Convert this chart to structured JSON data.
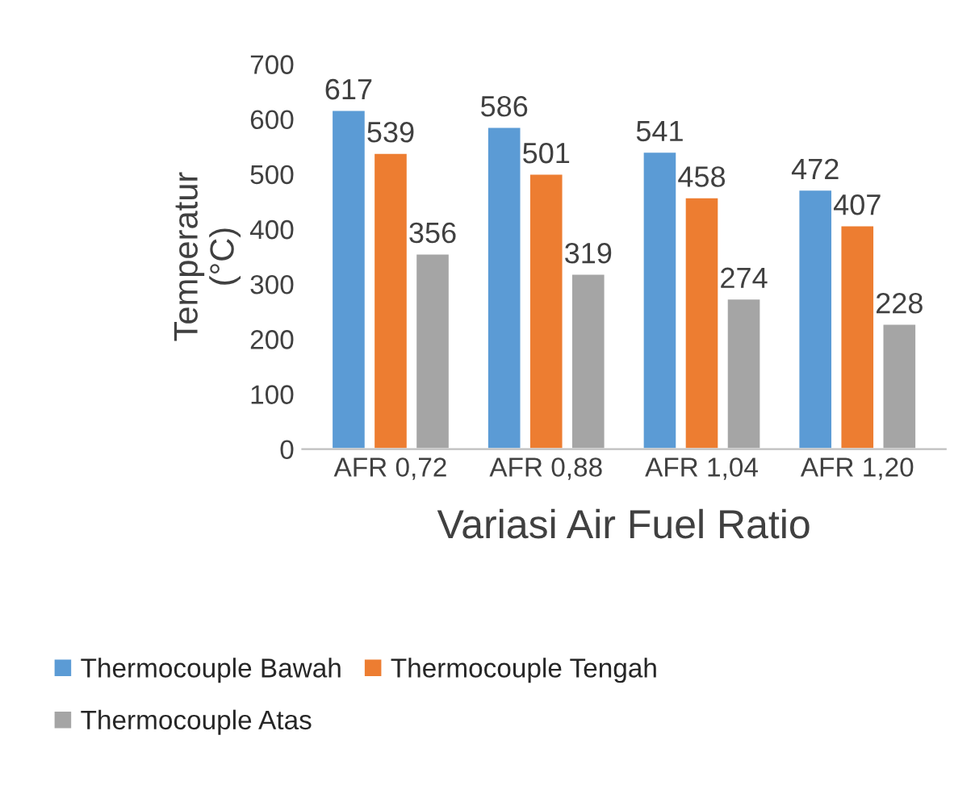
{
  "chart_data": {
    "type": "bar",
    "xlabel": "Variasi Air Fuel Ratio",
    "ylabel": "Temperatur\n(°C)",
    "categories": [
      "AFR 0,72",
      "AFR 0,88",
      "AFR 1,04",
      "AFR 1,20"
    ],
    "series": [
      {
        "name": "Thermocouple Bawah",
        "color": "#5b9bd5",
        "values": [
          617,
          586,
          541,
          472
        ]
      },
      {
        "name": "Thermocouple Tengah",
        "color": "#ed7d31",
        "values": [
          539,
          501,
          458,
          407
        ]
      },
      {
        "name": "Thermocouple Atas",
        "color": "#a5a5a5",
        "values": [
          356,
          319,
          274,
          228
        ]
      }
    ],
    "ylim": [
      0,
      700
    ],
    "yticks": [
      0,
      100,
      200,
      300,
      400,
      500,
      600,
      700
    ],
    "data_labels": true,
    "grid": false,
    "legend": "bottom"
  }
}
